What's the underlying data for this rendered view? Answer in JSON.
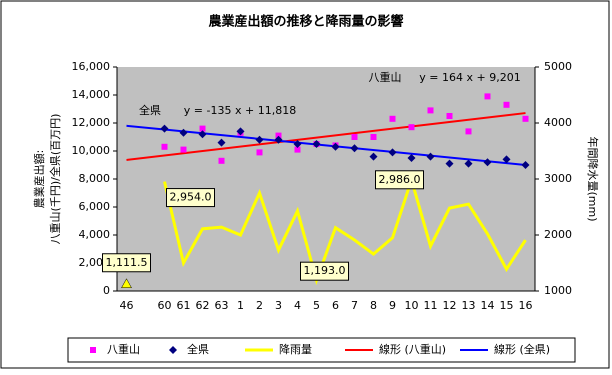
{
  "chart_data": {
    "type": "combo",
    "title": "農業産出額の推移と降雨量の影響",
    "y_label": [
      "農業産出額:",
      "八重山(千円)/全県(百万円)"
    ],
    "y2_label": "年間降水量(mm)",
    "categories": [
      "46",
      null,
      "60",
      "61",
      "62",
      "63",
      "1",
      "2",
      "3",
      "4",
      "5",
      "6",
      "7",
      "8",
      "9",
      "10",
      "11",
      "12",
      "13",
      "14",
      "15",
      "16"
    ],
    "ylim": [
      0,
      16000
    ],
    "yticks": [
      0,
      {
        "value": 2000,
        "label": "2,000"
      },
      {
        "value": 4000,
        "label": "4,000"
      },
      {
        "value": 6000,
        "label": "6,000"
      },
      {
        "value": 8000,
        "label": "8,000"
      },
      {
        "value": 10000,
        "label": "10,000"
      },
      {
        "value": 12000,
        "label": "12,000"
      },
      {
        "value": 14000,
        "label": "14,000"
      },
      {
        "value": 16000,
        "label": "16,000"
      }
    ],
    "y2lim": [
      1000,
      5000
    ],
    "y2ticks": [
      1000,
      2000,
      3000,
      4000,
      5000
    ],
    "series": [
      {
        "name": "八重山",
        "type": "scatter",
        "marker": "square",
        "color": "#ff00ff",
        "values": [
          null,
          null,
          10300,
          10100,
          11600,
          9300,
          11300,
          9900,
          11100,
          10100,
          10500,
          10400,
          11000,
          11000,
          12300,
          11700,
          12900,
          12500,
          11400,
          13900,
          13300,
          12300
        ]
      },
      {
        "name": "全県",
        "type": "scatter",
        "marker": "diamond",
        "color": "#000080",
        "values": [
          null,
          null,
          11600,
          11300,
          11200,
          10600,
          11400,
          10800,
          10800,
          10500,
          10500,
          10300,
          10200,
          9600,
          9900,
          9500,
          9600,
          9100,
          9100,
          9200,
          9400,
          9000
        ]
      },
      {
        "name": "降雨量",
        "type": "line",
        "axis": "y2",
        "color": "#ffff00",
        "values": [
          1111.5,
          null,
          2954.0,
          1500,
          2110,
          2140,
          2000,
          2750,
          1730,
          2430,
          1193.0,
          2130,
          1910,
          1660,
          1950,
          2986.0,
          1800,
          2480,
          2550,
          2020,
          1390,
          1910
        ],
        "value_labels": [
          "1,111.5",
          null,
          "2,954.0",
          null,
          null,
          null,
          null,
          null,
          null,
          null,
          "1,193.0",
          null,
          null,
          null,
          null,
          "2,986.0",
          null,
          null,
          null,
          null,
          null,
          null
        ]
      }
    ],
    "trendlines": [
      {
        "name": "線形 (八重山)",
        "color": "#ff0000",
        "start": 9360,
        "end": 12710,
        "label": "八重山",
        "equation": "y = 164 x + 9,201"
      },
      {
        "name": "線形 (全県)",
        "color": "#0000ff",
        "start": 11800,
        "end": 9000,
        "label": "全県",
        "equation": "y = -135 x + 11,818"
      }
    ]
  }
}
